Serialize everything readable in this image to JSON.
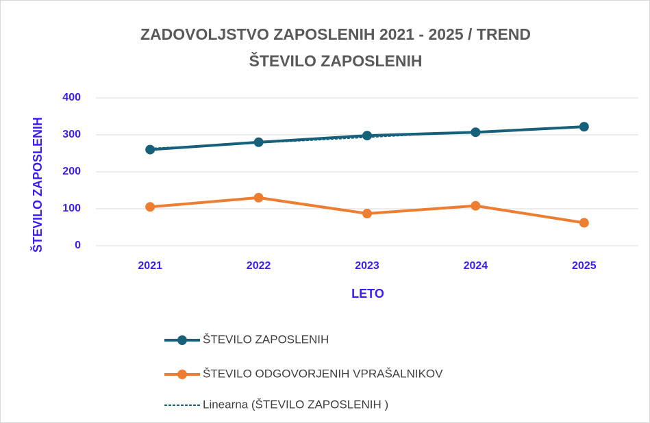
{
  "chart_data": {
    "type": "line",
    "title": [
      "ZADOVOLJSTVO ZAPOSLENIH 2021 - 2025  / TREND",
      "ŠTEVILO ZAPOSLENIH"
    ],
    "x_label": "LETO",
    "y_label": "ŠTEVILO ZAPOSLENIH",
    "categories": [
      "2021",
      "2022",
      "2023",
      "2024",
      "2025"
    ],
    "series": [
      {
        "name": "ŠTEVILO ZAPOSLENIH",
        "color": "#17607a",
        "style": "solid",
        "markers": true,
        "values": [
          260,
          280,
          298,
          307,
          322
        ]
      },
      {
        "name": "ŠTEVILO ODGOVORJENIH  VPRAŠALNIKOV",
        "color": "#ed7d31",
        "style": "solid",
        "markers": true,
        "values": [
          105,
          130,
          87,
          108,
          62
        ]
      },
      {
        "name": "Linearna (ŠTEVILO ZAPOSLENIH )",
        "color": "#17607a",
        "style": "dashed",
        "markers": false,
        "values": [
          263.2,
          278.3,
          293.4,
          308.5,
          323.6
        ]
      }
    ],
    "ylim": [
      0,
      400
    ],
    "yticks": [
      0,
      100,
      200,
      300,
      400
    ],
    "grid": true
  }
}
